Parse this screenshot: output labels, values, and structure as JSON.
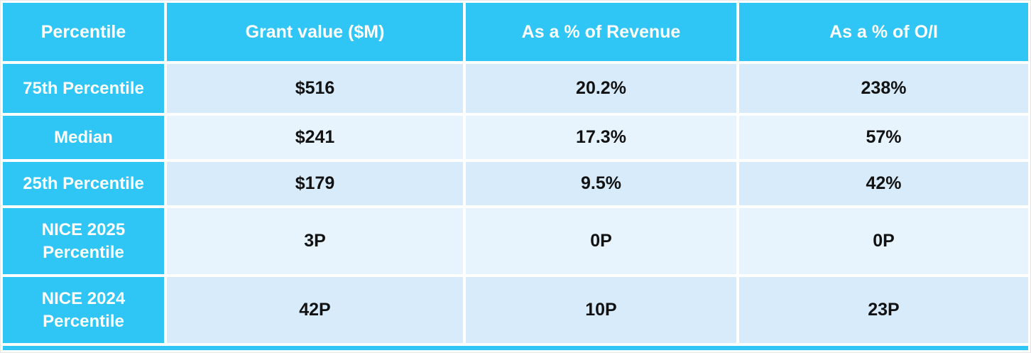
{
  "colors": {
    "header_bg": "#2FC5F4",
    "row_band_dark": "#D7EBFA",
    "row_band_light": "#E8F4FD",
    "header_text": "#FFFFFF",
    "data_text": "#121212"
  },
  "table": {
    "headers": {
      "percentile": "Percentile",
      "grant_value": "Grant value ($M)",
      "pct_revenue": "As a % of Revenue",
      "pct_oi": "As a % of O/I"
    },
    "rows": [
      {
        "label": "75th Percentile",
        "grant_value": "$516",
        "pct_revenue": "20.2%",
        "pct_oi": "238%"
      },
      {
        "label": "Median",
        "grant_value": "$241",
        "pct_revenue": "17.3%",
        "pct_oi": "57%"
      },
      {
        "label": "25th Percentile",
        "grant_value": "$179",
        "pct_revenue": "9.5%",
        "pct_oi": "42%"
      },
      {
        "label": "NICE 2025 Percentile",
        "grant_value": "3P",
        "pct_revenue": "0P",
        "pct_oi": "0P"
      },
      {
        "label": "NICE 2024 Percentile",
        "grant_value": "42P",
        "pct_revenue": "10P",
        "pct_oi": "23P"
      }
    ]
  },
  "chart_data": {
    "type": "table",
    "title": "",
    "columns": [
      "Percentile",
      "Grant value ($M)",
      "As a % of Revenue",
      "As a % of O/I"
    ],
    "rows": [
      [
        "75th Percentile",
        "$516",
        "20.2%",
        "238%"
      ],
      [
        "Median",
        "$241",
        "17.3%",
        "57%"
      ],
      [
        "25th Percentile",
        "$179",
        "9.5%",
        "42%"
      ],
      [
        "NICE 2025 Percentile",
        "3P",
        "0P",
        "0P"
      ],
      [
        "NICE 2024 Percentile",
        "42P",
        "10P",
        "23P"
      ]
    ]
  }
}
